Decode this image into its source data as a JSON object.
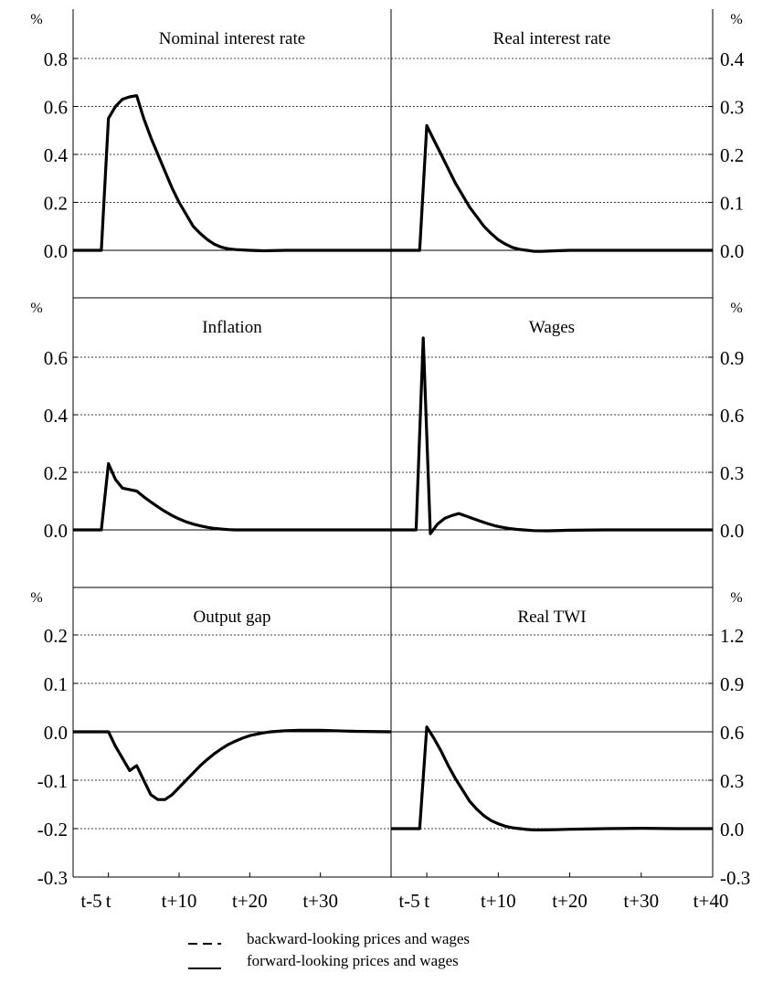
{
  "chart_data": [
    {
      "type": "line",
      "title": "Nominal interest rate",
      "unit_label": "%",
      "axis_side": "left",
      "ylim": [
        -0.2,
        0.9
      ],
      "yticks": [
        "0.8",
        "0.6",
        "0.4",
        "0.2",
        "0.0"
      ],
      "ytick_values": [
        0.8,
        0.6,
        0.4,
        0.2,
        0.0
      ],
      "gridlines": [
        0.8,
        0.6,
        0.4,
        0.2
      ],
      "zero_line": 0.0,
      "series": [
        {
          "style": "solid",
          "x": [
            -5,
            -1,
            0,
            1,
            2,
            3,
            4,
            5,
            6,
            7,
            8,
            9,
            10,
            11,
            12,
            13,
            14,
            15,
            16,
            17,
            18,
            20,
            22,
            25,
            30,
            35,
            40
          ],
          "y": [
            0,
            0,
            0.55,
            0.6,
            0.63,
            0.64,
            0.645,
            0.55,
            0.47,
            0.4,
            0.33,
            0.26,
            0.2,
            0.15,
            0.1,
            0.07,
            0.045,
            0.025,
            0.013,
            0.006,
            0.003,
            0.0,
            -0.002,
            0,
            0,
            0,
            0
          ]
        }
      ]
    },
    {
      "type": "line",
      "title": "Real interest rate",
      "unit_label": "%",
      "axis_side": "right",
      "ylim": [
        -0.1,
        0.45
      ],
      "yticks": [
        "0.4",
        "0.3",
        "0.2",
        "0.1",
        "0.0"
      ],
      "ytick_values": [
        0.4,
        0.3,
        0.2,
        0.1,
        0.0
      ],
      "gridlines": [
        0.4,
        0.3,
        0.2,
        0.1
      ],
      "zero_line": 0.0,
      "series": [
        {
          "style": "solid",
          "x": [
            -5,
            -1,
            0,
            1,
            2,
            3,
            4,
            5,
            6,
            7,
            8,
            9,
            10,
            11,
            12,
            13,
            14,
            15,
            16,
            18,
            20,
            25,
            30,
            35,
            40
          ],
          "y": [
            0,
            0,
            0.26,
            0.23,
            0.2,
            0.17,
            0.14,
            0.115,
            0.09,
            0.07,
            0.05,
            0.035,
            0.022,
            0.013,
            0.006,
            0.002,
            0.0,
            -0.002,
            -0.002,
            -0.001,
            0,
            0,
            0,
            0,
            0
          ]
        }
      ]
    },
    {
      "type": "line",
      "title": "Inflation",
      "unit_label": "%",
      "axis_side": "left",
      "ylim": [
        -0.2,
        0.8
      ],
      "yticks": [
        "0.6",
        "0.4",
        "0.2",
        "0.0"
      ],
      "ytick_values": [
        0.6,
        0.4,
        0.2,
        0.0
      ],
      "gridlines": [
        0.6,
        0.4,
        0.2
      ],
      "zero_line": 0.0,
      "series": [
        {
          "style": "solid",
          "x": [
            -5,
            -1,
            0,
            1,
            2,
            3,
            4,
            5,
            6,
            7,
            8,
            9,
            10,
            11,
            12,
            13,
            14,
            15,
            16,
            17,
            18,
            20,
            25,
            30,
            35,
            40
          ],
          "y": [
            0,
            0,
            0.23,
            0.175,
            0.145,
            0.14,
            0.135,
            0.115,
            0.097,
            0.08,
            0.064,
            0.05,
            0.038,
            0.028,
            0.02,
            0.014,
            0.009,
            0.005,
            0.003,
            0.001,
            0.0,
            0,
            0,
            0,
            0,
            0
          ]
        }
      ]
    },
    {
      "type": "line",
      "title": "Wages",
      "unit_label": "%",
      "axis_side": "right",
      "ylim": [
        -0.3,
        1.2
      ],
      "yticks": [
        "0.9",
        "0.6",
        "0.3",
        "0.0"
      ],
      "ytick_values": [
        0.9,
        0.6,
        0.3,
        0.0
      ],
      "gridlines": [
        0.9,
        0.6,
        0.3
      ],
      "zero_line": 0.0,
      "series": [
        {
          "style": "solid",
          "x": [
            -5,
            -1.5,
            -0.5,
            0.5,
            1.5,
            2.5,
            3.5,
            4.5,
            5.5,
            6.5,
            7.5,
            8.5,
            9.5,
            10.5,
            11.5,
            12.5,
            13.5,
            15,
            17,
            20,
            25,
            30,
            35,
            40
          ],
          "y": [
            0,
            0,
            1.0,
            -0.02,
            0.03,
            0.06,
            0.075,
            0.085,
            0.072,
            0.058,
            0.045,
            0.033,
            0.022,
            0.014,
            0.007,
            0.003,
            0.0,
            -0.004,
            -0.005,
            -0.002,
            0,
            0,
            0,
            0
          ]
        }
      ]
    },
    {
      "type": "line",
      "title": "Output gap",
      "unit_label": "%",
      "axis_side": "left",
      "ylim": [
        -0.3,
        0.3
      ],
      "yticks": [
        "0.2",
        "0.1",
        "0.0",
        "-0.1",
        "-0.2",
        "-0.3"
      ],
      "ytick_values": [
        0.2,
        0.1,
        0.0,
        -0.1,
        -0.2,
        -0.3
      ],
      "gridlines": [
        0.2,
        0.1,
        -0.1,
        -0.2
      ],
      "zero_line": 0.0,
      "xticks": [
        "t-5",
        "t",
        "t+10",
        "t+20",
        "t+30"
      ],
      "xtick_values": [
        -5,
        0,
        10,
        20,
        30
      ],
      "series": [
        {
          "style": "solid",
          "x": [
            -5,
            0,
            1,
            2,
            3,
            4,
            5,
            6,
            7,
            8,
            9,
            10,
            11,
            12,
            13,
            14,
            15,
            16,
            17,
            18,
            19,
            20,
            21,
            22,
            23,
            25,
            27,
            30,
            35,
            40
          ],
          "y": [
            0,
            0,
            -0.03,
            -0.055,
            -0.08,
            -0.07,
            -0.1,
            -0.13,
            -0.14,
            -0.14,
            -0.13,
            -0.115,
            -0.1,
            -0.085,
            -0.07,
            -0.057,
            -0.045,
            -0.035,
            -0.026,
            -0.019,
            -0.013,
            -0.008,
            -0.005,
            -0.002,
            0.0,
            0.002,
            0.003,
            0.003,
            0.001,
            0
          ]
        }
      ]
    },
    {
      "type": "line",
      "title": "Real TWI",
      "unit_label": "%",
      "axis_side": "right",
      "ylim": [
        -0.3,
        1.35
      ],
      "yticks": [
        "1.2",
        "0.9",
        "0.6",
        "0.3",
        "0.0",
        "-0.3"
      ],
      "ytick_values": [
        1.2,
        0.9,
        0.6,
        0.3,
        0.0,
        -0.3
      ],
      "gridlines": [
        1.2,
        0.9,
        0.3,
        0.0
      ],
      "zero_line": 0.6,
      "xticks": [
        "t-5",
        "t",
        "t+10",
        "t+20",
        "t+30",
        "t+40"
      ],
      "xtick_values": [
        -5,
        0,
        10,
        20,
        30,
        40
      ],
      "series": [
        {
          "style": "solid",
          "x": [
            -5,
            -1,
            0,
            1,
            2,
            3,
            4,
            5,
            6,
            7,
            8,
            9,
            10,
            11,
            12,
            13,
            14,
            15,
            16,
            18,
            20,
            25,
            30,
            35,
            40
          ],
          "y": [
            0,
            0,
            0.63,
            0.56,
            0.48,
            0.39,
            0.31,
            0.24,
            0.17,
            0.12,
            0.08,
            0.05,
            0.03,
            0.015,
            0.005,
            0.0,
            -0.005,
            -0.008,
            -0.008,
            -0.006,
            -0.004,
            0,
            0.002,
            0,
            0
          ]
        }
      ]
    }
  ],
  "legend": {
    "items": [
      {
        "label": "backward-looking prices and wages",
        "style": "dashed"
      },
      {
        "label": "forward-looking prices and wages",
        "style": "solid"
      }
    ]
  }
}
